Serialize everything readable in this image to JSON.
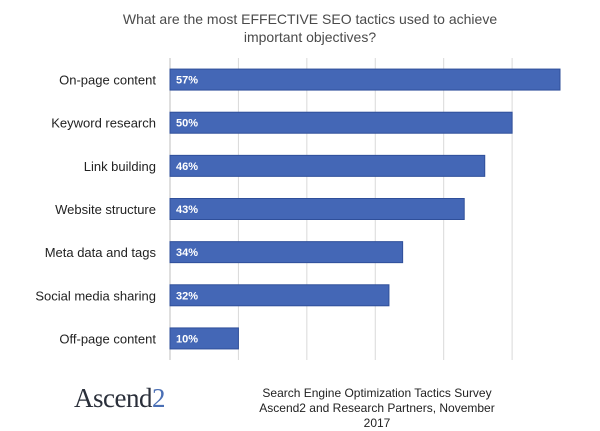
{
  "chart_data": {
    "type": "bar",
    "orientation": "horizontal",
    "title": "What are the most EFFECTIVE SEO tactics used to achieve important objectives?",
    "categories": [
      "On-page content",
      "Keyword research",
      "Link building",
      "Website structure",
      "Meta data and tags",
      "Social media sharing",
      "Off-page content"
    ],
    "values": [
      57,
      50,
      46,
      43,
      34,
      32,
      10
    ],
    "data_labels": [
      "57%",
      "50%",
      "46%",
      "43%",
      "34%",
      "32%",
      "10%"
    ],
    "xlim": [
      0,
      60
    ],
    "grid": true,
    "legend": "none",
    "colors": {
      "bar": "#4467b6",
      "bar_stroke": "#2f4f9a",
      "grid": "#d9d9d9",
      "label": "#ffffff"
    }
  },
  "branding": {
    "logo_word": "Ascend",
    "logo_number": "2"
  },
  "source": {
    "line1": "Search Engine Optimization Tactics Survey",
    "line2": "Ascend2 and Research Partners, November 2017"
  }
}
